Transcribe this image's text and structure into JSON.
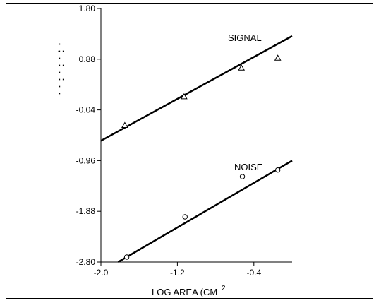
{
  "chart_data": {
    "type": "scatter",
    "title": "",
    "xlabel": "LOG AREA (CM",
    "xlabel_superscript": "2",
    "ylabel": "",
    "xlim": [
      -2.0,
      0.0
    ],
    "ylim": [
      -2.8,
      1.8
    ],
    "x_ticks": [
      -2.0,
      -1.2,
      -0.4
    ],
    "x_tick_labels": [
      "-2.0",
      "-1.2",
      "-0.4"
    ],
    "y_ticks": [
      1.8,
      0.88,
      -0.04,
      -0.96,
      -1.88,
      -2.8
    ],
    "y_tick_labels": [
      "1.80",
      "0.88",
      "-0.04",
      "-0.96",
      "-1.88",
      "-2.80"
    ],
    "grid": false,
    "legend": "none",
    "series": [
      {
        "name": "SIGNAL",
        "marker": "triangle",
        "points": [
          [
            -1.75,
            -0.32
          ],
          [
            -1.13,
            0.2
          ],
          [
            -0.53,
            0.72
          ],
          [
            -0.15,
            0.9
          ]
        ],
        "fit_line": [
          [
            -2.0,
            -0.6
          ],
          [
            0.0,
            1.3
          ]
        ]
      },
      {
        "name": "NOISE",
        "marker": "circle",
        "points": [
          [
            -1.73,
            -2.71
          ],
          [
            -1.12,
            -1.98
          ],
          [
            -0.52,
            -1.25
          ],
          [
            -0.15,
            -1.13
          ]
        ],
        "fit_line": [
          [
            -1.82,
            -2.8
          ],
          [
            0.0,
            -0.96
          ]
        ]
      }
    ]
  }
}
